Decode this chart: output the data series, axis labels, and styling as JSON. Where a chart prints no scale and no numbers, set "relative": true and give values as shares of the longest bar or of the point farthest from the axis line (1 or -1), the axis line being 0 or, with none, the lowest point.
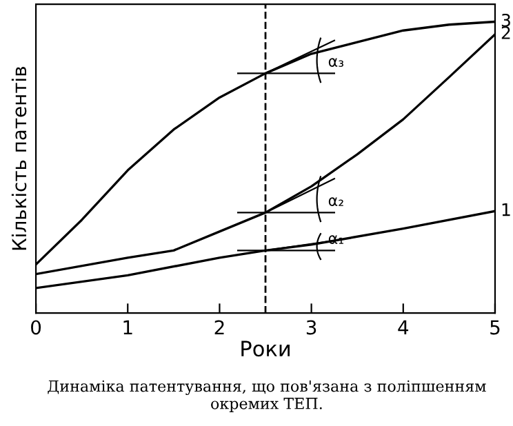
{
  "chart_data": {
    "type": "line",
    "relative": true,
    "xlabel": "Роки",
    "ylabel": "Кількість патентів",
    "xlim": [
      0,
      5
    ],
    "xticks": [
      0,
      1,
      2,
      3,
      4,
      5
    ],
    "grid": false,
    "legend": false,
    "marker": "none",
    "line_style": "solid",
    "series": [
      {
        "name": "1",
        "color": "#000000",
        "x": [
          0,
          1,
          2,
          2.5,
          3,
          4,
          5
        ],
        "values": [
          0.086,
          0.13,
          0.19,
          0.215,
          0.235,
          0.29,
          0.35
        ]
      },
      {
        "name": "2",
        "color": "#000000",
        "x": [
          0,
          1,
          1.5,
          2,
          2.5,
          3,
          3.5,
          4,
          4.5,
          5
        ],
        "values": [
          0.134,
          0.19,
          0.215,
          0.28,
          0.345,
          0.435,
          0.545,
          0.665,
          0.81,
          0.957
        ]
      },
      {
        "name": "3",
        "color": "#000000",
        "x": [
          0,
          0.5,
          1,
          1.5,
          2,
          2.5,
          3,
          3.5,
          4,
          4.5,
          5
        ],
        "values": [
          0.167,
          0.32,
          0.49,
          0.63,
          0.74,
          0.823,
          0.89,
          0.93,
          0.97,
          0.99,
          1
        ]
      }
    ],
    "ref_lines": [
      {
        "axis": "x",
        "value": 2.5,
        "line_style": "dashed",
        "color": "#000000"
      }
    ],
    "annotations": [
      "α₁",
      "α₂",
      "α₃",
      "Динаміка патентування, що пов'язана з поліпшенням окремих ТЕП."
    ]
  }
}
